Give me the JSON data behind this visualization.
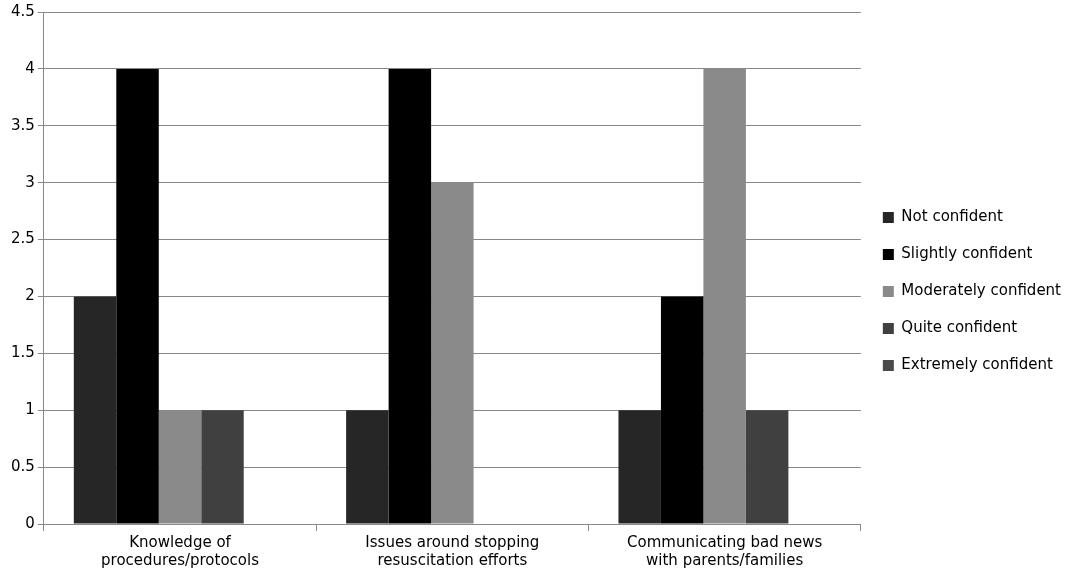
{
  "chart_data": {
    "type": "bar",
    "categories": [
      "Knowledge of procedures/protocols",
      "Issues around stopping resuscitation efforts",
      "Communicating bad news with parents/families"
    ],
    "series": [
      {
        "name": "Not confident",
        "color": "#262626",
        "values": [
          2,
          1,
          1
        ]
      },
      {
        "name": "Slightly confident",
        "color": "#000000",
        "values": [
          4,
          4,
          2
        ]
      },
      {
        "name": "Moderately confident",
        "color": "#8a8a8a",
        "values": [
          1,
          3,
          4
        ]
      },
      {
        "name": "Quite confident",
        "color": "#404040",
        "values": [
          1,
          0,
          1
        ]
      },
      {
        "name": "Extremely confident",
        "color": "#4a4a4a",
        "values": [
          0,
          0,
          0
        ]
      }
    ],
    "ylim": [
      0,
      4.5
    ],
    "yticks": [
      0,
      0.5,
      1,
      1.5,
      2,
      2.5,
      3,
      3.5,
      4,
      4.5
    ],
    "grid": "y",
    "legend": "right"
  }
}
